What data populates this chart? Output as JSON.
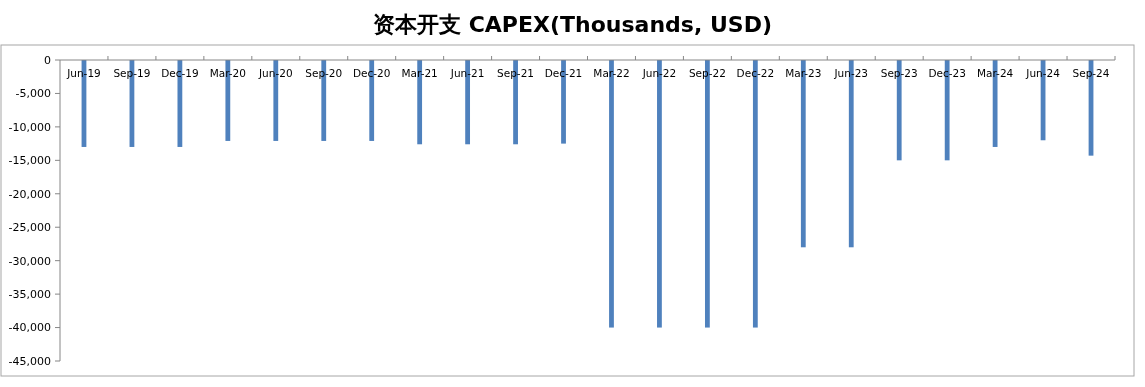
{
  "chart_data": {
    "type": "bar",
    "title": "资本开支 CAPEX(Thousands, USD)",
    "categories": [
      "Jun-19",
      "Sep-19",
      "Dec-19",
      "Mar-20",
      "Jun-20",
      "Sep-20",
      "Dec-20",
      "Mar-21",
      "Jun-21",
      "Sep-21",
      "Dec-21",
      "Mar-22",
      "Jun-22",
      "Sep-22",
      "Dec-22",
      "Mar-23",
      "Jun-23",
      "Sep-23",
      "Dec-23",
      "Mar-24",
      "Jun-24",
      "Sep-24"
    ],
    "values": [
      -13000,
      -13000,
      -13000,
      -12100,
      -12100,
      -12100,
      -12100,
      -12600,
      -12600,
      -12600,
      -12500,
      -40000,
      -40000,
      -40000,
      -40000,
      -28000,
      -28000,
      -15000,
      -15000,
      -13000,
      -12000,
      -14300
    ],
    "color": "#4f81bd",
    "ylim": [
      -45000,
      0
    ],
    "yticks": [
      {
        "value": 0,
        "label": "0"
      },
      {
        "value": -5000,
        "label": "-5,000"
      },
      {
        "value": -10000,
        "label": "-10,000"
      },
      {
        "value": -15000,
        "label": "-15,000"
      },
      {
        "value": -20000,
        "label": "-20,000"
      },
      {
        "value": -25000,
        "label": "-25,000"
      },
      {
        "value": -30000,
        "label": "-30,000"
      },
      {
        "value": -35000,
        "label": "-35,000"
      },
      {
        "value": -40000,
        "label": "-40,000"
      },
      {
        "value": -45000,
        "label": "-45,000"
      }
    ],
    "grid": false
  }
}
